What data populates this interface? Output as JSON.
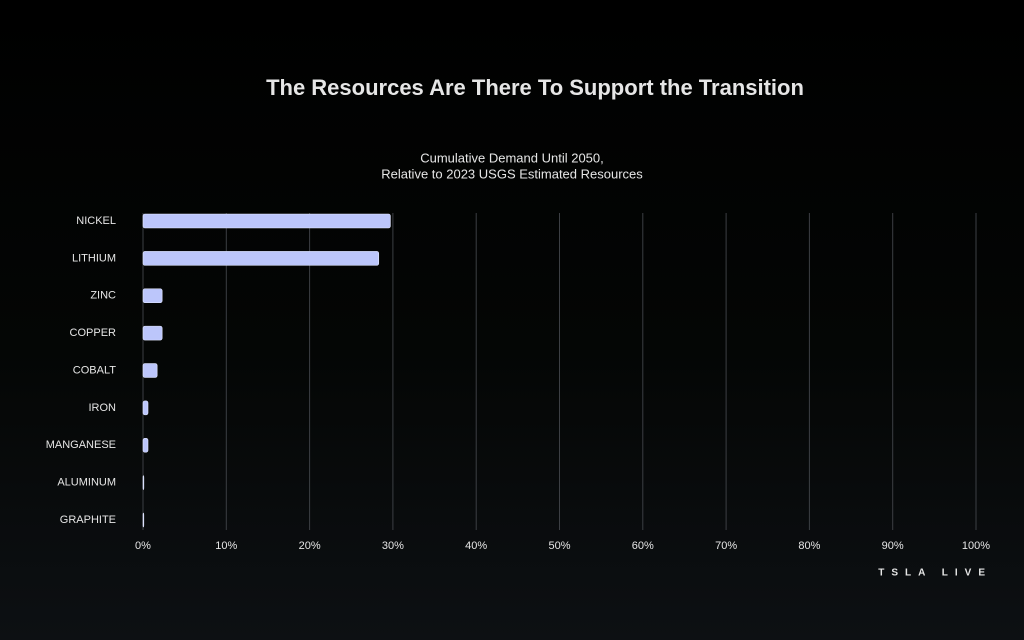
{
  "chart_data": {
    "type": "bar",
    "orientation": "horizontal",
    "title": "The Resources Are There To Support the Transition",
    "subtitle": [
      "Cumulative Demand Until 2050,",
      "Relative to 2023 USGS Estimated Resources"
    ],
    "categories": [
      "NICKEL",
      "LITHIUM",
      "ZINC",
      "COPPER",
      "COBALT",
      "IRON",
      "MANGANESE",
      "ALUMINUM",
      "GRAPHITE"
    ],
    "values": [
      29.7,
      28.3,
      2.3,
      2.3,
      1.7,
      0.6,
      0.6,
      0.1,
      0.05
    ],
    "color": "#bcc6fb",
    "xlim": [
      0,
      100
    ],
    "xticks": [
      {
        "value": 0,
        "label": "0%"
      },
      {
        "value": 10,
        "label": "10%"
      },
      {
        "value": 20,
        "label": "20%"
      },
      {
        "value": 30,
        "label": "30%"
      },
      {
        "value": 40,
        "label": "40%"
      },
      {
        "value": 50,
        "label": "50%"
      },
      {
        "value": 60,
        "label": "60%"
      },
      {
        "value": 70,
        "label": "70%"
      },
      {
        "value": 80,
        "label": "80%"
      },
      {
        "value": 90,
        "label": "90%"
      },
      {
        "value": 100,
        "label": "100%"
      }
    ],
    "grid": true,
    "branding": "TSLA LIVE"
  }
}
